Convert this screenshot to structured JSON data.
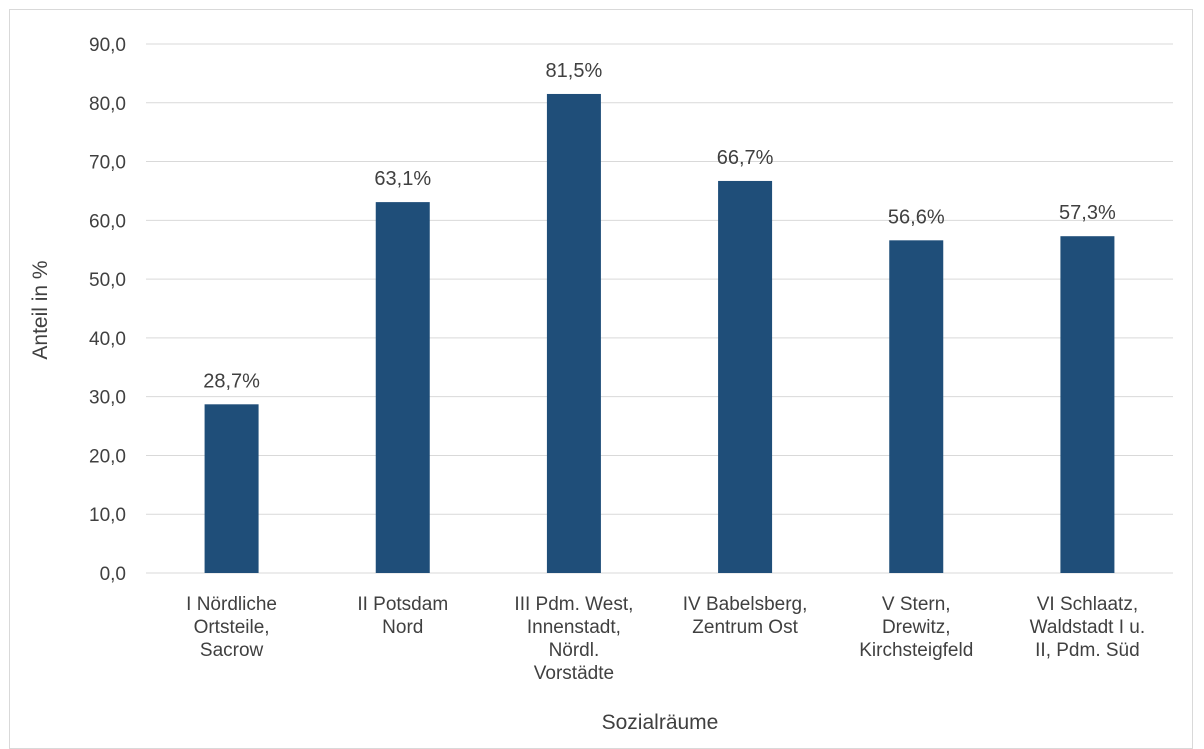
{
  "chart_data": {
    "type": "bar",
    "categories": [
      [
        "I Nördliche",
        "Ortsteile,",
        "Sacrow"
      ],
      [
        "II Potsdam",
        "Nord"
      ],
      [
        "III Pdm. West,",
        "Innenstadt,",
        "Nördl.",
        "Vorstädte"
      ],
      [
        "IV Babelsberg,",
        "Zentrum Ost"
      ],
      [
        "V Stern,",
        "Drewitz,",
        "Kirchsteigfeld"
      ],
      [
        "VI Schlaatz,",
        "Waldstadt I u.",
        "II, Pdm. Süd"
      ]
    ],
    "values": [
      28.7,
      63.1,
      81.5,
      66.7,
      56.6,
      57.3
    ],
    "data_labels": [
      "28,7%",
      "63,1%",
      "81,5%",
      "66,7%",
      "56,6%",
      "57,3%"
    ],
    "y_ticks": [
      "0,0",
      "10,0",
      "20,0",
      "30,0",
      "40,0",
      "50,0",
      "60,0",
      "70,0",
      "80,0",
      "90,0"
    ],
    "ylim": [
      0,
      90
    ],
    "xlabel": "Sozialräume",
    "ylabel": "Anteil in %",
    "grid": true,
    "bar_color": "#1f4e79",
    "grid_color": "#d9d9d9"
  }
}
